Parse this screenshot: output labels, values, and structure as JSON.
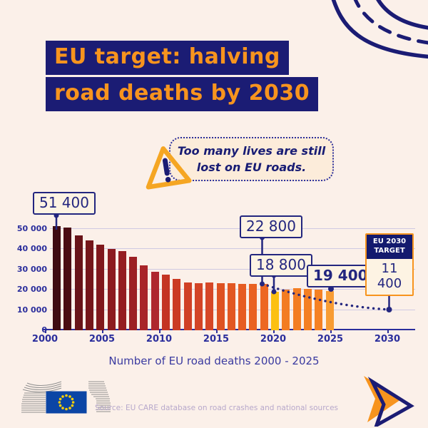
{
  "title": {
    "line1": "EU target: halving",
    "line2": "road deaths by 2030"
  },
  "bubble": {
    "line1": "Too many lives are still",
    "line2": "lost on EU roads."
  },
  "chart_data": {
    "type": "bar",
    "title": "Number of EU road deaths 2000 - 2025",
    "years": [
      2000,
      2001,
      2002,
      2003,
      2004,
      2005,
      2006,
      2007,
      2008,
      2009,
      2010,
      2011,
      2012,
      2013,
      2014,
      2015,
      2016,
      2017,
      2018,
      2019,
      2020,
      2021,
      2022,
      2023,
      2024,
      2025
    ],
    "values": [
      51400,
      50400,
      46800,
      44300,
      42100,
      39900,
      38800,
      36300,
      31800,
      28600,
      27400,
      25200,
      23400,
      23300,
      23400,
      23300,
      23000,
      22900,
      22800,
      22800,
      18800,
      19900,
      20700,
      20400,
      20000,
      19400
    ],
    "bar_colors": [
      "#3f0b11",
      "#4a0d13",
      "#681318",
      "#75161a",
      "#80181c",
      "#8c1b1f",
      "#941d21",
      "#9c2024",
      "#a82429",
      "#ae272e",
      "#c43422",
      "#cb3a23",
      "#d04025",
      "#d34426",
      "#d64727",
      "#de5222",
      "#e25722",
      "#e65c22",
      "#e96122",
      "#ed6723",
      "#fcc011",
      "#f37c22",
      "#f37d22",
      "#f47f23",
      "#f58124",
      "#f89c33"
    ],
    "highlight_year": 2020,
    "highlight_color": "#fcc011",
    "ylim": [
      0,
      53500
    ],
    "grid": true,
    "y_ticks": {
      "values": [
        0,
        10000,
        20000,
        30000,
        40000,
        50000
      ],
      "labels": [
        "0",
        "10 000",
        "20 000",
        "30 000",
        "40 000",
        "50 000"
      ]
    },
    "x_ticks": [
      "2000",
      "2005",
      "2010",
      "2015",
      "2020",
      "2025",
      "2030"
    ],
    "trend_dotted": {
      "from_year": 2019,
      "from_value": 22800,
      "to_year": 2030,
      "to_value": 11400
    },
    "callouts": [
      {
        "year": 2000,
        "value": 51400,
        "label": "51 400"
      },
      {
        "year": 2019,
        "value": 22800,
        "label": "22 800"
      },
      {
        "year": 2020,
        "value": 18800,
        "label": "18 800"
      },
      {
        "year": 2025,
        "value": 19400,
        "label": "19 400"
      },
      {
        "year": 2030,
        "value": 11400,
        "label": "11 400",
        "header": "EU 2030 TARGET"
      }
    ]
  },
  "footer": {
    "source": "Source: EU CARE database on road crashes and national sources"
  },
  "colors": {
    "background": "#fbf0e9",
    "navy": "#1b1c74",
    "accent_orange": "#f7941e",
    "highlight_yellow": "#fcc011",
    "chart_text": "#2b2e9c",
    "bubble_fill": "#fcecda",
    "target_border": "#f7941e",
    "source_text": "#b7a8cb"
  }
}
